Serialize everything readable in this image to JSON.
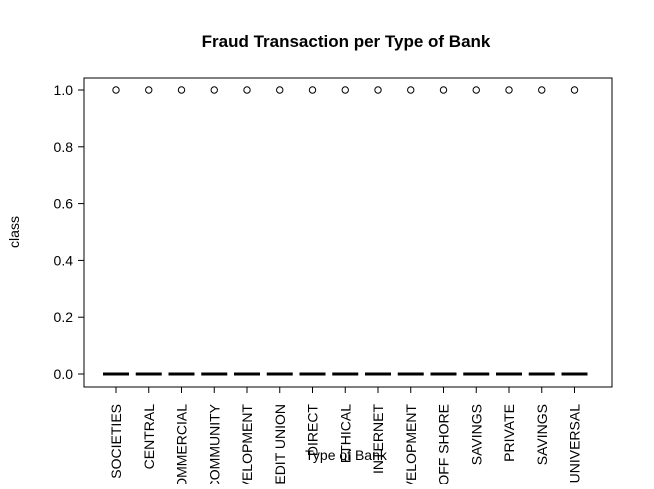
{
  "chart_data": {
    "type": "boxplot",
    "title": "Fraud Transaction per Type of Bank",
    "xlabel": "Type of Bank",
    "ylabel": "class",
    "ylim": [
      0,
      1
    ],
    "y_ticks": [
      "0.0",
      "0.2",
      "0.4",
      "0.6",
      "0.8",
      "1.0"
    ],
    "y_tick_values": [
      0,
      0.2,
      0.4,
      0.6,
      0.8,
      1.0
    ],
    "categories": [
      "SOCIETIES",
      "CENTRAL",
      "COMMERCIAL",
      "COMMUNITY",
      "DEVELOPMENT",
      "CREDIT UNION",
      "DIRECT",
      "ETHICAL",
      "INTERNET",
      "DEVELOPMENT",
      "OFF SHORE",
      "SAVINGS",
      "PRIVATE",
      "SAVINGS",
      "UNIVERSAL"
    ],
    "medians": [
      0,
      0,
      0,
      0,
      0,
      0,
      0,
      0,
      0,
      0,
      0,
      0,
      0,
      0,
      0
    ],
    "outliers": [
      1,
      1,
      1,
      1,
      1,
      1,
      1,
      1,
      1,
      1,
      1,
      1,
      1,
      1,
      1
    ],
    "grid": false,
    "legend": "none"
  }
}
